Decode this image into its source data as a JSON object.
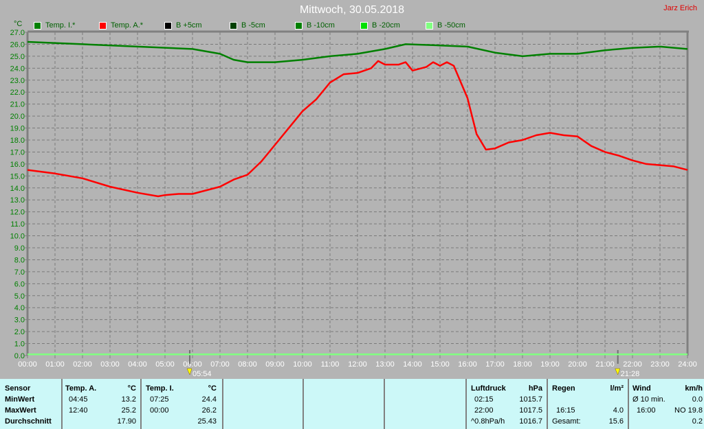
{
  "header": {
    "title": "Mittwoch, 30.05.2018",
    "author": "Jarz Erich"
  },
  "legend": [
    {
      "label": "Temp. I.*",
      "color": "#008000"
    },
    {
      "label": "Temp. A.*",
      "color": "#ff0000"
    },
    {
      "label": "B +5cm",
      "color": "#000000"
    },
    {
      "label": "B -5cm",
      "color": "#004000"
    },
    {
      "label": "B -10cm",
      "color": "#008000"
    },
    {
      "label": "B -20cm",
      "color": "#00e000"
    },
    {
      "label": "B -50cm",
      "color": "#80ff80"
    }
  ],
  "chart_data": {
    "type": "line",
    "ylabel": "°C",
    "ylim": [
      0,
      27
    ],
    "y_ticks": [
      "0.0",
      "1.0",
      "2.0",
      "3.0",
      "4.0",
      "5.0",
      "6.0",
      "7.0",
      "8.0",
      "9.0",
      "10.0",
      "11.0",
      "12.0",
      "13.0",
      "14.0",
      "15.0",
      "16.0",
      "17.0",
      "18.0",
      "19.0",
      "20.0",
      "21.0",
      "22.0",
      "23.0",
      "24.0",
      "25.0",
      "26.0",
      "27.0"
    ],
    "x_ticks": [
      "00:00",
      "01:00",
      "02:00",
      "03:00",
      "04:00",
      "05:00",
      "06:00",
      "07:00",
      "08:00",
      "09:00",
      "10:00",
      "11:00",
      "12:00",
      "13:00",
      "14:00",
      "15:00",
      "16:00",
      "17:00",
      "18:00",
      "19:00",
      "20:00",
      "21:00",
      "22:00",
      "23:00",
      "24:00"
    ],
    "xlim_hours": [
      0,
      24
    ],
    "grid": true,
    "sunrise": "05:54",
    "sunset": "21:28",
    "series": [
      {
        "name": "Temp. A.*",
        "color": "#ff0000",
        "x": [
          0,
          1,
          2,
          3,
          4,
          4.75,
          5,
          5.5,
          6,
          7,
          7.5,
          8,
          8.5,
          9,
          9.5,
          10,
          10.5,
          11,
          11.5,
          12,
          12.5,
          12.75,
          13,
          13.5,
          13.75,
          14,
          14.5,
          14.75,
          15,
          15.25,
          15.5,
          16,
          16.33,
          16.67,
          17,
          17.5,
          18,
          18.5,
          19,
          19.5,
          20,
          20.5,
          21,
          21.5,
          22,
          22.5,
          23,
          23.5,
          24
        ],
        "y": [
          15.5,
          15.2,
          14.8,
          14.1,
          13.6,
          13.3,
          13.4,
          13.5,
          13.5,
          14.1,
          14.7,
          15.1,
          16.2,
          17.6,
          19.0,
          20.4,
          21.4,
          22.8,
          23.5,
          23.6,
          24.0,
          24.6,
          24.3,
          24.3,
          24.5,
          23.8,
          24.1,
          24.5,
          24.2,
          24.5,
          24.2,
          21.5,
          18.5,
          17.2,
          17.3,
          17.8,
          18.0,
          18.4,
          18.6,
          18.4,
          18.3,
          17.5,
          17.0,
          16.7,
          16.3,
          16.0,
          15.9,
          15.8,
          15.5
        ]
      },
      {
        "name": "Temp. I.*",
        "color": "#008000",
        "x": [
          0,
          2,
          4,
          6,
          7,
          7.5,
          8,
          9,
          10,
          11,
          12,
          13,
          13.75,
          15,
          16,
          17,
          18,
          19,
          20,
          21,
          22,
          23,
          24
        ],
        "y": [
          26.2,
          26.0,
          25.8,
          25.6,
          25.2,
          24.7,
          24.5,
          24.5,
          24.7,
          25.0,
          25.2,
          25.6,
          26.0,
          25.9,
          25.8,
          25.3,
          25.0,
          25.2,
          25.2,
          25.5,
          25.7,
          25.8,
          25.6
        ]
      },
      {
        "name": "B -50cm",
        "color": "#80ff80",
        "x": [
          0,
          24
        ],
        "y": [
          0.1,
          0.1
        ]
      }
    ]
  },
  "table": {
    "sensor": {
      "header": "Sensor",
      "min": "MinWert",
      "max": "MaxWert",
      "avg": "Durchschnitt"
    },
    "temp_a": {
      "header": "Temp. A.",
      "unit": "°C",
      "min_time": "04:45",
      "min": "13.2",
      "max_time": "12:40",
      "max": "25.2",
      "avg": "17.90"
    },
    "temp_i": {
      "header": "Temp. I.",
      "unit": "°C",
      "min_time": "07:25",
      "min": "24.4",
      "max_time": "00:00",
      "max": "26.2",
      "avg": "25.43"
    },
    "pressure": {
      "header": "Luftdruck",
      "unit": "hPa",
      "min_time": "02:15",
      "min": "1015.7",
      "max_time": "22:00",
      "max": "1017.5",
      "trend": "^0.8hPa/h",
      "avg": "1016.7"
    },
    "rain": {
      "header": "Regen",
      "unit": "l/m²",
      "max_time": "16:15",
      "max": "4.0",
      "total_label": "Gesamt:",
      "total": "15.6"
    },
    "wind": {
      "header": "Wind",
      "unit": "km/h",
      "avg_label": "Ø 10 min.",
      "avg": "0.0",
      "max_time": "16:00",
      "max": "NO 19.8",
      "last": "0.2"
    }
  }
}
